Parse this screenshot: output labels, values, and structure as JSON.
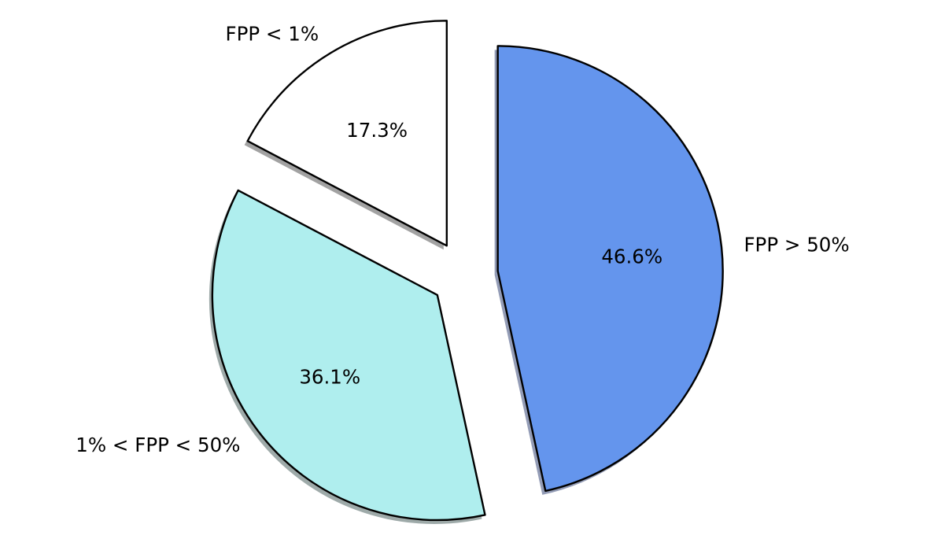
{
  "chart_data": {
    "type": "pie",
    "start_angle_deg": 90,
    "direction": "clockwise",
    "slices": [
      {
        "label": "FPP > 50%",
        "value": 46.6,
        "pct_label": "46.6%",
        "color": "#6495ED",
        "shadow_color": "#3b4a7a",
        "explode": 0.15,
        "label_anchor": "start"
      },
      {
        "label": "1% < FPP < 50%",
        "value": 36.1,
        "pct_label": "36.1%",
        "color": "#AFEEEE",
        "shadow_color": "#4f6563",
        "explode": 0.15,
        "label_anchor": "end"
      },
      {
        "label": "FPP < 1%",
        "value": 17.3,
        "pct_label": "17.3%",
        "color": "#FFFFFF",
        "shadow_color": "#555555",
        "explode": 0.15,
        "label_anchor": "end"
      }
    ]
  }
}
